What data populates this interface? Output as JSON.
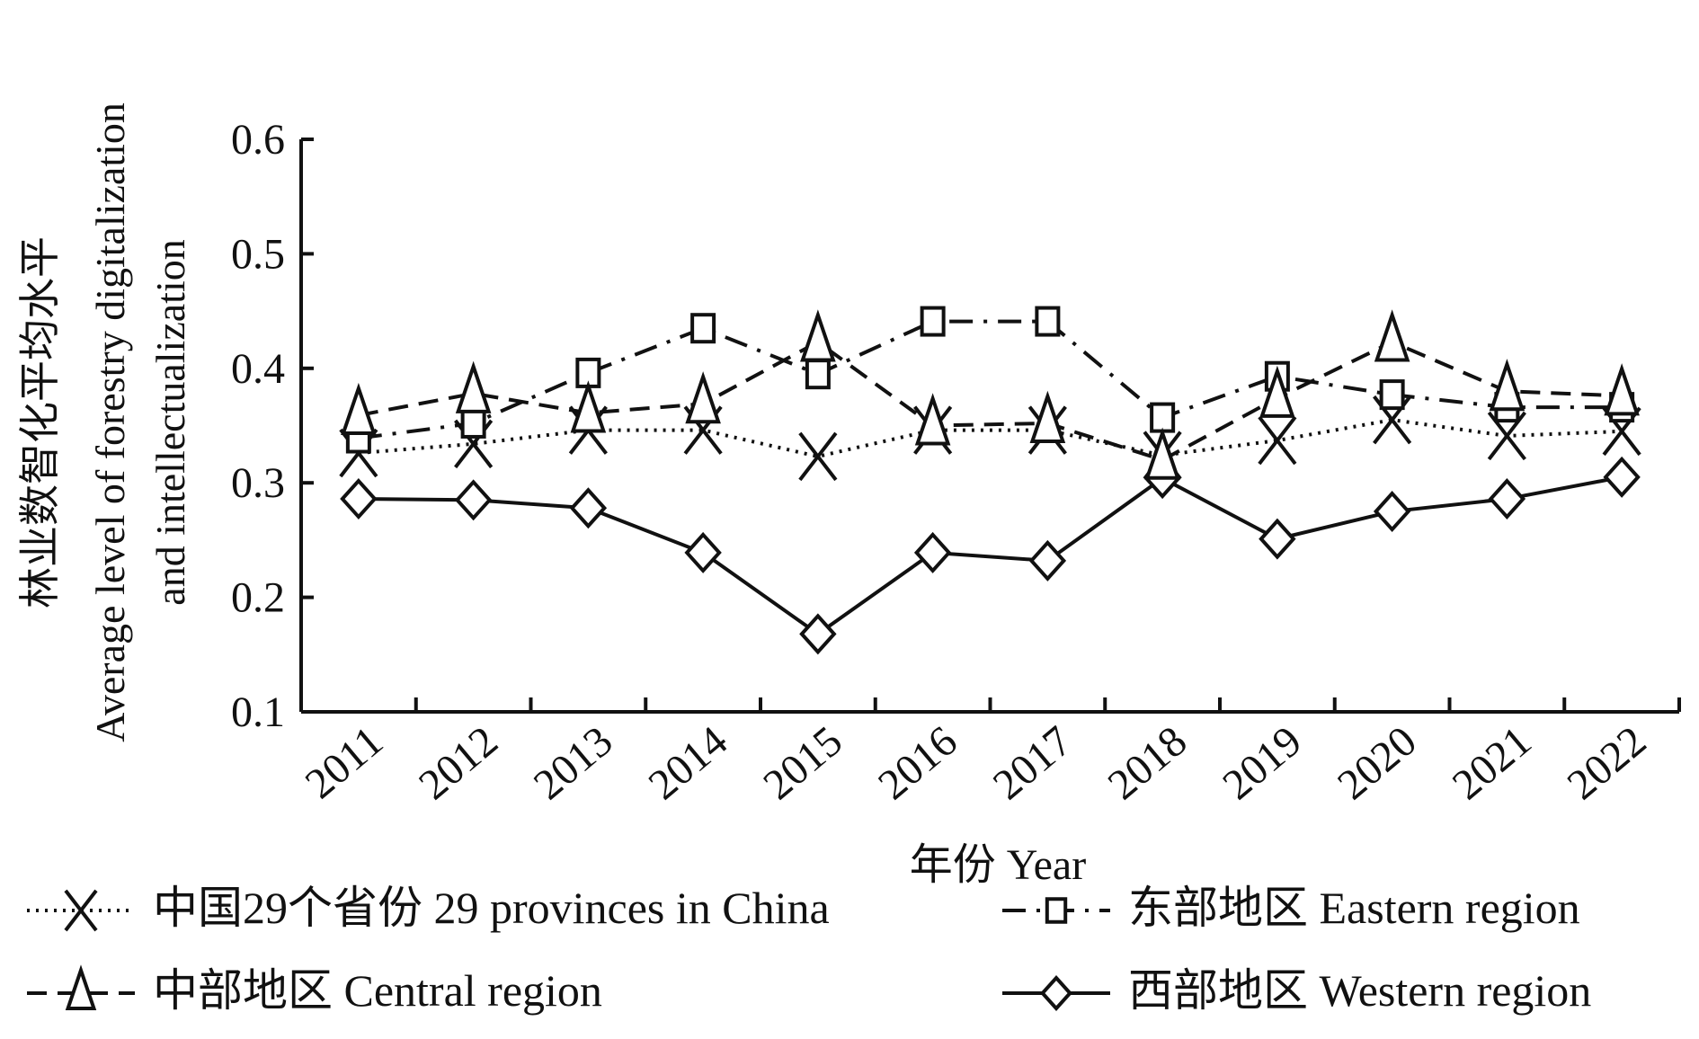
{
  "chart_data": {
    "type": "line",
    "title": "",
    "xlabel": "年份 Year",
    "ylabel_cn": "林业数智化平均水平",
    "ylabel_en_1": "Average level of forestry digitalization",
    "ylabel_en_2": "and intellectualization",
    "ylim": [
      0.1,
      0.6
    ],
    "yticks": [
      "0.1",
      "0.2",
      "0.3",
      "0.4",
      "0.5",
      "0.6"
    ],
    "categories": [
      "2011",
      "2012",
      "2013",
      "2014",
      "2015",
      "2016",
      "2017",
      "2018",
      "2019",
      "2020",
      "2021",
      "2022"
    ],
    "grid": false,
    "legend_position": "bottom",
    "series": [
      {
        "name": "中国29个省份 29 provinces  in China",
        "marker": "x",
        "dash": "dotted",
        "values": [
          0.326,
          0.334,
          0.346,
          0.346,
          0.323,
          0.346,
          0.346,
          0.324,
          0.337,
          0.355,
          0.341,
          0.345
        ]
      },
      {
        "name": "东部地区 Eastern region",
        "marker": "square",
        "dash": "dashdot",
        "values": [
          0.339,
          0.352,
          0.396,
          0.435,
          0.395,
          0.441,
          0.441,
          0.357,
          0.393,
          0.377,
          0.366,
          0.366
        ]
      },
      {
        "name": "中部地区 Central region",
        "marker": "triangle",
        "dash": "dashed",
        "values": [
          0.359,
          0.378,
          0.361,
          0.369,
          0.423,
          0.35,
          0.352,
          0.32,
          0.374,
          0.423,
          0.38,
          0.376
        ]
      },
      {
        "name": "西部地区 Western region",
        "marker": "diamond",
        "dash": "solid",
        "values": [
          0.286,
          0.285,
          0.278,
          0.239,
          0.168,
          0.239,
          0.232,
          0.304,
          0.251,
          0.275,
          0.286,
          0.305
        ]
      }
    ],
    "line_color": "#111111"
  }
}
